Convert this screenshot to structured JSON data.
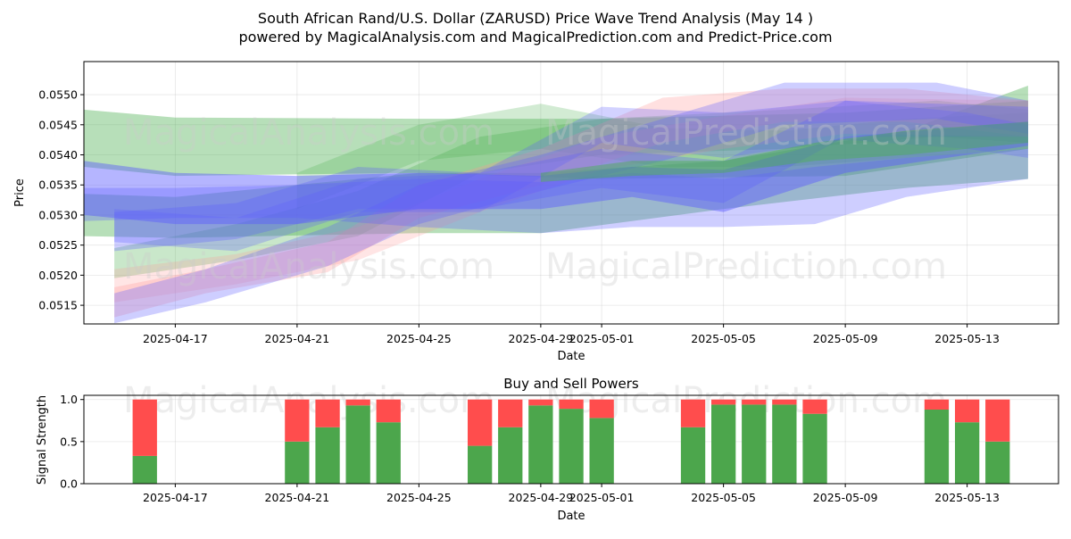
{
  "title_line1": "South African Rand/U.S. Dollar (ZARUSD) Price Wave Trend Analysis (May 14 )",
  "title_line2": "powered by MagicalAnalysis.com and MagicalPrediction.com and Predict-Price.com",
  "watermarks": [
    "MagicalAnalysis.com",
    "MagicalPrediction.com"
  ],
  "colors": {
    "green": "#4caf50",
    "red": "#ff4d4d",
    "blue": "#5c5cff",
    "pink": "#ff9999",
    "bar_green": "#4ca64c",
    "bar_red": "#ff4d4d"
  },
  "chart_data": [
    {
      "type": "area",
      "name": "price-wave",
      "xlabel": "Date",
      "ylabel": "Price",
      "xlim": [
        "2025-04-14",
        "2025-05-16"
      ],
      "ylim": [
        0.05119,
        0.05555
      ],
      "x_ticks": [
        "2025-04-17",
        "2025-04-21",
        "2025-04-25",
        "2025-04-29",
        "2025-05-01",
        "2025-05-05",
        "2025-05-09",
        "2025-05-13"
      ],
      "y_ticks": [
        "0.0515",
        "0.0520",
        "0.0525",
        "0.0530",
        "0.0535",
        "0.0540",
        "0.0545",
        "0.0550"
      ],
      "grid": true,
      "bands": [
        {
          "color": "green",
          "opacity": 0.4,
          "x": [
            "2025-04-14",
            "2025-04-17",
            "2025-04-25",
            "2025-05-01",
            "2025-05-09",
            "2025-05-15"
          ],
          "upper": [
            0.05475,
            0.05462,
            0.0546,
            0.0546,
            0.0547,
            0.0549
          ],
          "lower": [
            0.0538,
            0.05365,
            0.0537,
            0.0536,
            0.05365,
            0.0541
          ]
        },
        {
          "color": "green",
          "opacity": 0.4,
          "x": [
            "2025-04-14",
            "2025-04-17",
            "2025-04-25",
            "2025-04-29",
            "2025-05-05",
            "2025-05-11",
            "2025-05-15"
          ],
          "upper": [
            0.05335,
            0.0533,
            0.0537,
            0.0537,
            0.0539,
            0.0544,
            0.05515
          ],
          "lower": [
            0.05265,
            0.05262,
            0.0527,
            0.0527,
            0.0531,
            0.05345,
            0.0536
          ]
        },
        {
          "color": "green",
          "opacity": 0.3,
          "x": [
            "2025-04-15",
            "2025-04-19",
            "2025-04-23",
            "2025-04-27",
            "2025-05-01",
            "2025-05-07",
            "2025-05-12",
            "2025-05-15"
          ],
          "upper": [
            0.05245,
            0.05285,
            0.0534,
            0.0543,
            0.0546,
            0.05475,
            0.0549,
            0.05475
          ],
          "lower": [
            0.05195,
            0.05225,
            0.05265,
            0.0537,
            0.054,
            0.0541,
            0.0543,
            0.0542
          ]
        },
        {
          "color": "green",
          "opacity": 0.25,
          "x": [
            "2025-04-21",
            "2025-04-25",
            "2025-04-29",
            "2025-05-03",
            "2025-05-07",
            "2025-05-11",
            "2025-05-15"
          ],
          "upper": [
            0.0537,
            0.0545,
            0.05485,
            0.05445,
            0.0544,
            0.0546,
            0.0547
          ],
          "lower": [
            0.0531,
            0.0539,
            0.0541,
            0.0538,
            0.0538,
            0.05395,
            0.0541
          ]
        },
        {
          "color": "pink",
          "opacity": 0.3,
          "x": [
            "2025-04-15",
            "2025-04-18",
            "2025-04-22",
            "2025-04-25",
            "2025-04-29",
            "2025-05-03",
            "2025-05-07",
            "2025-05-11",
            "2025-05-15"
          ],
          "upper": [
            0.0518,
            0.0521,
            0.05255,
            0.0535,
            0.0541,
            0.05495,
            0.0551,
            0.0551,
            0.0549
          ],
          "lower": [
            0.0513,
            0.0517,
            0.05205,
            0.05295,
            0.0535,
            0.0542,
            0.05455,
            0.05455,
            0.0543
          ]
        },
        {
          "color": "pink",
          "opacity": 0.25,
          "x": [
            "2025-04-15",
            "2025-04-19",
            "2025-04-23",
            "2025-04-27",
            "2025-05-01",
            "2025-05-05",
            "2025-05-09",
            "2025-05-15"
          ],
          "upper": [
            0.0521,
            0.05235,
            0.0528,
            0.0536,
            0.0543,
            0.05465,
            0.05495,
            0.0549
          ],
          "lower": [
            0.05155,
            0.05185,
            0.05225,
            0.05305,
            0.05375,
            0.0541,
            0.05435,
            0.0543
          ]
        },
        {
          "color": "blue",
          "opacity": 0.3,
          "x": [
            "2025-04-15",
            "2025-04-18",
            "2025-04-22",
            "2025-04-25",
            "2025-04-29",
            "2025-05-03",
            "2025-05-07",
            "2025-05-12",
            "2025-05-15"
          ],
          "upper": [
            0.0517,
            0.0521,
            0.0528,
            0.0535,
            0.054,
            0.0546,
            0.0552,
            0.0552,
            0.0549
          ],
          "lower": [
            0.0512,
            0.05155,
            0.05215,
            0.05285,
            0.0534,
            0.0539,
            0.0545,
            0.0546,
            0.05435
          ]
        },
        {
          "color": "blue",
          "opacity": 0.3,
          "x": [
            "2025-04-15",
            "2025-04-19",
            "2025-04-23",
            "2025-04-27",
            "2025-05-01",
            "2025-05-05",
            "2025-05-09",
            "2025-05-15"
          ],
          "upper": [
            0.05305,
            0.0532,
            0.0538,
            0.0537,
            0.0541,
            0.0539,
            0.0549,
            0.0548
          ],
          "lower": [
            0.0524,
            0.0526,
            0.0531,
            0.0531,
            0.05345,
            0.0532,
            0.0543,
            0.0543
          ]
        },
        {
          "color": "blue",
          "opacity": 0.28,
          "x": [
            "2025-04-15",
            "2025-04-19",
            "2025-04-23",
            "2025-04-27",
            "2025-05-01",
            "2025-05-05",
            "2025-05-09",
            "2025-05-13",
            "2025-05-15"
          ],
          "upper": [
            0.0531,
            0.05295,
            0.0536,
            0.0537,
            0.0548,
            0.0547,
            0.0549,
            0.0547,
            0.0545
          ],
          "lower": [
            0.05255,
            0.0524,
            0.05305,
            0.05305,
            0.0542,
            0.05395,
            0.05425,
            0.0541,
            0.05395
          ]
        },
        {
          "color": "blue",
          "opacity": 0.3,
          "x": [
            "2025-04-14",
            "2025-04-17",
            "2025-04-21",
            "2025-04-25",
            "2025-04-29",
            "2025-05-02",
            "2025-05-05",
            "2025-05-08",
            "2025-05-11",
            "2025-05-15"
          ],
          "upper": [
            0.05345,
            0.05345,
            0.0535,
            0.0536,
            0.05355,
            0.0537,
            0.0536,
            0.0538,
            0.05395,
            0.0541
          ],
          "lower": [
            0.0529,
            0.05295,
            0.05295,
            0.0528,
            0.0527,
            0.0528,
            0.0528,
            0.05285,
            0.0533,
            0.0536
          ]
        },
        {
          "color": "blue",
          "opacity": 0.45,
          "x": [
            "2025-04-14",
            "2025-04-17",
            "2025-04-21",
            "2025-04-25",
            "2025-04-29",
            "2025-05-02",
            "2025-05-05",
            "2025-05-09",
            "2025-05-15"
          ],
          "upper": [
            0.0539,
            0.0537,
            0.05365,
            0.0537,
            0.05365,
            0.0538,
            0.05375,
            0.0543,
            0.05455
          ],
          "lower": [
            0.053,
            0.05285,
            0.05285,
            0.0531,
            0.0531,
            0.0533,
            0.05305,
            0.0537,
            0.05415
          ]
        },
        {
          "color": "green",
          "opacity": 0.45,
          "x": [
            "2025-04-29",
            "2025-05-02",
            "2025-05-05",
            "2025-05-08",
            "2025-05-11",
            "2025-05-15"
          ],
          "upper": [
            0.0537,
            0.0539,
            0.0539,
            0.0542,
            0.0544,
            0.05455
          ],
          "lower": [
            0.05355,
            0.05365,
            0.0537,
            0.0539,
            0.054,
            0.0542
          ]
        }
      ]
    },
    {
      "type": "bar",
      "name": "buy-and-sell-powers",
      "title": "Buy and Sell Powers",
      "xlabel": "Date",
      "ylabel": "Signal Strength",
      "xlim": [
        "2025-04-14",
        "2025-05-16"
      ],
      "ylim": [
        0.0,
        1.05
      ],
      "x_ticks": [
        "2025-04-17",
        "2025-04-21",
        "2025-04-25",
        "2025-04-29",
        "2025-05-01",
        "2025-05-05",
        "2025-05-09",
        "2025-05-13"
      ],
      "y_ticks": [
        "0.0",
        "0.5",
        "1.0"
      ],
      "grid": true,
      "dates": [
        "2025-04-16",
        "2025-04-21",
        "2025-04-22",
        "2025-04-23",
        "2025-04-24",
        "2025-04-27",
        "2025-04-28",
        "2025-04-29",
        "2025-04-30",
        "2025-05-01",
        "2025-05-04",
        "2025-05-05",
        "2025-05-06",
        "2025-05-07",
        "2025-05-08",
        "2025-05-12",
        "2025-05-13",
        "2025-05-14"
      ],
      "series": [
        {
          "name": "buy",
          "color": "bar_green",
          "values": [
            0.33,
            0.5,
            0.67,
            0.93,
            0.73,
            0.45,
            0.67,
            0.93,
            0.89,
            0.78,
            0.67,
            0.94,
            0.94,
            0.94,
            0.83,
            0.88,
            0.73,
            0.5
          ]
        },
        {
          "name": "sell",
          "color": "bar_red",
          "values": [
            0.67,
            0.5,
            0.33,
            0.07,
            0.27,
            0.55,
            0.33,
            0.07,
            0.11,
            0.22,
            0.33,
            0.06,
            0.06,
            0.06,
            0.17,
            0.12,
            0.27,
            0.5
          ]
        }
      ]
    }
  ]
}
